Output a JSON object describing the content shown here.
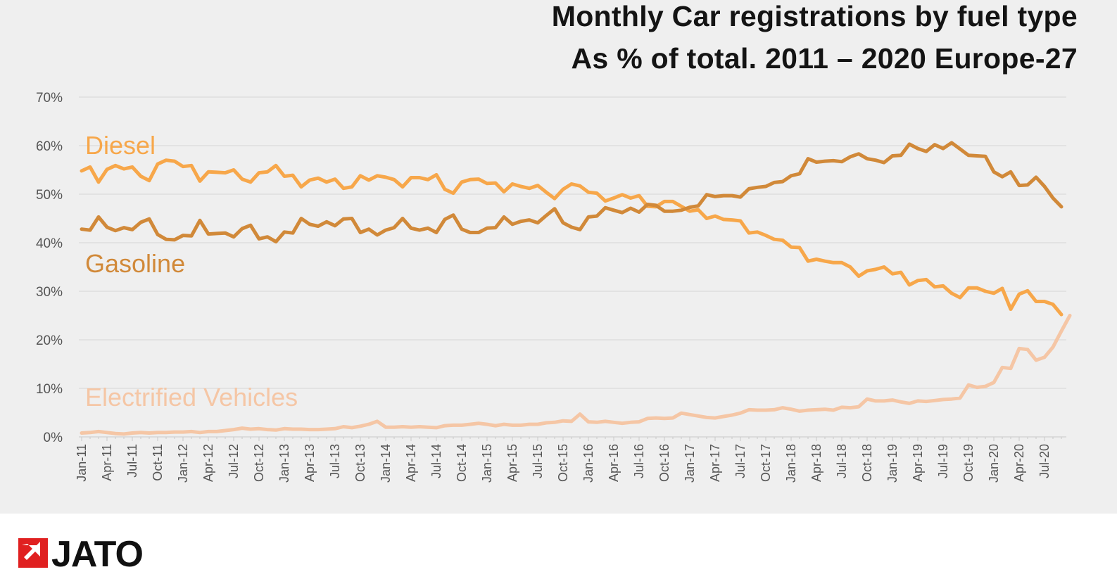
{
  "chart_data": {
    "type": "line",
    "title": "Monthly Car registrations by fuel type",
    "subtitle": "As % of total. 2011 – 2020 Europe-27",
    "ylim": [
      0,
      70
    ],
    "ytick_values": [
      0,
      10,
      20,
      30,
      40,
      50,
      60,
      70
    ],
    "ytick_labels": [
      "0%",
      "10%",
      "20%",
      "30%",
      "40%",
      "50%",
      "60%",
      "70%"
    ],
    "grid": true,
    "legend": "inline labels",
    "x_start": "Jan-11",
    "x_tick_labels": [
      "Jan-11",
      "Apr-11",
      "Jul-11",
      "Oct-11",
      "Jan-12",
      "Apr-12",
      "Jul-12",
      "Oct-12",
      "Jan-13",
      "Apr-13",
      "Jul-13",
      "Oct-13",
      "Jan-14",
      "Apr-14",
      "Jul-14",
      "Oct-14",
      "Jan-15",
      "Apr-15",
      "Jul-15",
      "Oct-15",
      "Jan-16",
      "Apr-16",
      "Jul-16",
      "Oct-16",
      "Jan-17",
      "Apr-17",
      "Jul-17",
      "Oct-17",
      "Jan-18",
      "Apr-18",
      "Jul-18",
      "Oct-18",
      "Jan-19",
      "Apr-19",
      "Jul-19",
      "Oct-19",
      "Jan-20",
      "Apr-20",
      "Jul-20"
    ],
    "series": [
      {
        "name": "Diesel",
        "color": "#f7a74a",
        "values": [
          54.8,
          55.6,
          52.5,
          55.1,
          55.9,
          55.2,
          55.6,
          53.7,
          52.8,
          56.2,
          57.0,
          56.8,
          55.7,
          55.9,
          52.7,
          54.6,
          54.5,
          54.4,
          55.0,
          53.1,
          52.5,
          54.4,
          54.6,
          55.9,
          53.7,
          53.9,
          51.5,
          52.9,
          53.3,
          52.5,
          53.1,
          51.2,
          51.5,
          53.8,
          52.9,
          53.8,
          53.5,
          53.0,
          51.5,
          53.4,
          53.4,
          53.0,
          54.0,
          51.0,
          50.2,
          52.5,
          53.0,
          53.1,
          52.2,
          52.3,
          50.5,
          52.1,
          51.6,
          51.2,
          51.8,
          50.4,
          49.1,
          51.0,
          52.1,
          51.7,
          50.4,
          50.2,
          48.6,
          49.2,
          49.9,
          49.2,
          49.7,
          47.5,
          47.4,
          48.5,
          48.5,
          47.5,
          46.5,
          46.8,
          45.0,
          45.5,
          44.8,
          44.7,
          44.5,
          42.0,
          42.2,
          41.5,
          40.7,
          40.5,
          39.1,
          39.0,
          36.2,
          36.6,
          36.2,
          35.9,
          35.9,
          35.0,
          33.1,
          34.2,
          34.5,
          35.0,
          33.6,
          33.9,
          31.3,
          32.2,
          32.4,
          30.9,
          31.1,
          29.6,
          28.7,
          30.7,
          30.7,
          30.0,
          29.6,
          30.6,
          26.3,
          29.4,
          30.1,
          27.9,
          27.9,
          27.3,
          25.2
        ]
      },
      {
        "name": "Gasoline",
        "color": "#d18939",
        "values": [
          42.8,
          42.6,
          45.3,
          43.2,
          42.5,
          43.1,
          42.7,
          44.2,
          44.9,
          41.7,
          40.7,
          40.6,
          41.5,
          41.4,
          44.6,
          41.8,
          41.9,
          42.0,
          41.2,
          42.9,
          43.6,
          40.8,
          41.2,
          40.2,
          42.2,
          42.0,
          45.0,
          43.8,
          43.4,
          44.3,
          43.5,
          44.9,
          45.0,
          42.1,
          42.8,
          41.6,
          42.6,
          43.1,
          45.0,
          43.0,
          42.6,
          43.0,
          42.1,
          44.8,
          45.7,
          42.8,
          42.1,
          42.1,
          43.0,
          43.1,
          45.3,
          43.8,
          44.4,
          44.7,
          44.1,
          45.6,
          47.0,
          44.1,
          43.2,
          42.7,
          45.3,
          45.5,
          47.2,
          46.7,
          46.2,
          47.1,
          46.3,
          47.9,
          47.7,
          46.5,
          46.5,
          46.7,
          47.3,
          47.6,
          49.9,
          49.5,
          49.7,
          49.7,
          49.4,
          51.1,
          51.4,
          51.6,
          52.4,
          52.6,
          53.8,
          54.2,
          57.3,
          56.6,
          56.8,
          56.9,
          56.7,
          57.7,
          58.3,
          57.3,
          57.0,
          56.5,
          57.9,
          58.0,
          60.3,
          59.4,
          58.8,
          60.2,
          59.4,
          60.6,
          59.3,
          58.0,
          57.9,
          57.8,
          54.6,
          53.6,
          54.6,
          51.8,
          51.9,
          53.5,
          51.6,
          49.2,
          47.4
        ]
      },
      {
        "name": "Electrified Vehicles",
        "color": "#f5c6a5",
        "values": [
          0.8,
          0.9,
          1.1,
          0.9,
          0.7,
          0.6,
          0.8,
          0.9,
          0.8,
          0.9,
          0.9,
          1.0,
          1.0,
          1.1,
          0.9,
          1.1,
          1.1,
          1.3,
          1.5,
          1.8,
          1.6,
          1.7,
          1.5,
          1.4,
          1.7,
          1.6,
          1.6,
          1.5,
          1.5,
          1.6,
          1.7,
          2.1,
          1.9,
          2.2,
          2.6,
          3.2,
          2.0,
          2.0,
          2.1,
          2.0,
          2.1,
          2.0,
          1.9,
          2.3,
          2.4,
          2.4,
          2.6,
          2.8,
          2.6,
          2.3,
          2.6,
          2.4,
          2.4,
          2.6,
          2.6,
          2.9,
          3.0,
          3.3,
          3.2,
          4.7,
          3.1,
          3.0,
          3.2,
          3.0,
          2.8,
          3.0,
          3.1,
          3.8,
          3.9,
          3.8,
          3.9,
          4.9,
          4.6,
          4.3,
          4.0,
          3.9,
          4.2,
          4.5,
          4.9,
          5.6,
          5.5,
          5.5,
          5.6,
          6.0,
          5.7,
          5.3,
          5.5,
          5.6,
          5.7,
          5.5,
          6.1,
          6.0,
          6.2,
          7.8,
          7.4,
          7.4,
          7.6,
          7.2,
          6.9,
          7.4,
          7.3,
          7.5,
          7.7,
          7.8,
          8.0,
          10.7,
          10.2,
          10.4,
          11.2,
          14.3,
          14.1,
          18.2,
          18.0,
          15.8,
          16.4,
          18.5,
          21.8,
          25.0
        ]
      }
    ]
  },
  "logo": {
    "text": "JATO",
    "mark_color": "#e02020"
  }
}
